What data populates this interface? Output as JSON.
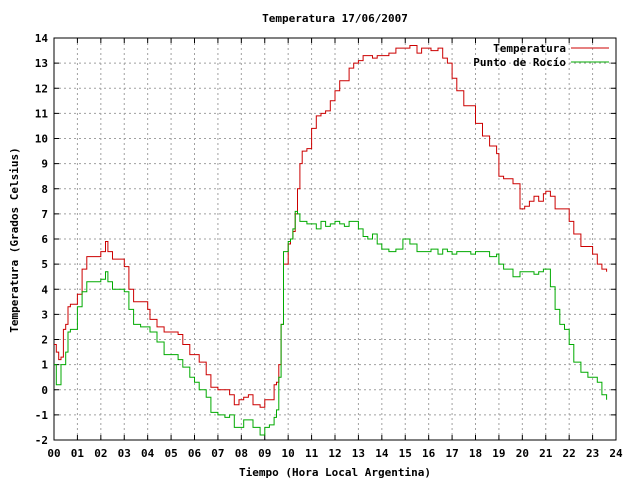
{
  "chart_data": {
    "type": "line",
    "title": "Temperatura 17/06/2007",
    "xlabel": "Tiempo (Hora Local Argentina)",
    "ylabel": "Temperatura (Grados Celsius)",
    "xlim": [
      0,
      24
    ],
    "ylim": [
      -2,
      14
    ],
    "x_ticks": [
      0,
      1,
      2,
      3,
      4,
      5,
      6,
      7,
      8,
      9,
      10,
      11,
      12,
      13,
      14,
      15,
      16,
      17,
      18,
      19,
      20,
      21,
      22,
      23,
      24
    ],
    "x_tick_labels": [
      "00",
      "01",
      "02",
      "03",
      "04",
      "05",
      "06",
      "07",
      "08",
      "09",
      "10",
      "11",
      "12",
      "13",
      "14",
      "15",
      "16",
      "17",
      "18",
      "19",
      "20",
      "21",
      "22",
      "23",
      "24"
    ],
    "y_ticks": [
      -2,
      -1,
      0,
      1,
      2,
      3,
      4,
      5,
      6,
      7,
      8,
      9,
      10,
      11,
      12,
      13,
      14
    ],
    "grid": true,
    "legend_position": "top-right",
    "series": [
      {
        "name": "Temperatura",
        "color": "#cc0000",
        "x": [
          0.0,
          0.1,
          0.2,
          0.3,
          0.4,
          0.5,
          0.6,
          0.7,
          0.9,
          1.0,
          1.2,
          1.4,
          1.5,
          1.8,
          2.0,
          2.2,
          2.3,
          2.5,
          2.7,
          3.0,
          3.2,
          3.4,
          3.7,
          4.0,
          4.1,
          4.4,
          4.7,
          5.0,
          5.3,
          5.5,
          5.8,
          6.0,
          6.2,
          6.5,
          6.7,
          7.0,
          7.3,
          7.5,
          7.7,
          7.9,
          8.1,
          8.3,
          8.5,
          8.8,
          9.0,
          9.2,
          9.4,
          9.5,
          9.6,
          9.7,
          9.8,
          10.0,
          10.1,
          10.2,
          10.3,
          10.4,
          10.5,
          10.6,
          10.8,
          11.0,
          11.2,
          11.4,
          11.6,
          11.8,
          12.0,
          12.2,
          12.4,
          12.6,
          12.8,
          13.0,
          13.2,
          13.4,
          13.6,
          13.8,
          14.0,
          14.3,
          14.6,
          14.9,
          15.2,
          15.5,
          15.7,
          15.9,
          16.1,
          16.4,
          16.6,
          16.8,
          17.0,
          17.2,
          17.5,
          17.8,
          18.0,
          18.3,
          18.6,
          18.9,
          19.0,
          19.2,
          19.4,
          19.6,
          19.9,
          20.1,
          20.3,
          20.5,
          20.7,
          20.9,
          21.0,
          21.2,
          21.4,
          21.6,
          21.8,
          22.0,
          22.2,
          22.5,
          22.8,
          23.0,
          23.2,
          23.4,
          23.6
        ],
        "values": [
          1.8,
          1.5,
          1.2,
          1.3,
          2.4,
          2.6,
          3.3,
          3.4,
          3.4,
          3.8,
          4.8,
          5.3,
          5.3,
          5.3,
          5.5,
          5.9,
          5.5,
          5.2,
          5.2,
          4.9,
          4.0,
          3.5,
          3.5,
          3.2,
          2.8,
          2.5,
          2.3,
          2.3,
          2.2,
          1.8,
          1.4,
          1.4,
          1.1,
          0.6,
          0.1,
          0.0,
          0.0,
          -0.2,
          -0.6,
          -0.4,
          -0.3,
          -0.2,
          -0.6,
          -0.7,
          -0.4,
          -0.4,
          0.2,
          0.3,
          1.0,
          2.6,
          5.0,
          5.8,
          6.0,
          6.3,
          7.0,
          8.0,
          9.0,
          9.5,
          9.6,
          10.4,
          10.9,
          11.0,
          11.1,
          11.5,
          11.9,
          12.3,
          12.3,
          12.8,
          13.0,
          13.1,
          13.3,
          13.3,
          13.2,
          13.3,
          13.3,
          13.4,
          13.6,
          13.6,
          13.7,
          13.4,
          13.6,
          13.6,
          13.5,
          13.6,
          13.2,
          13.0,
          12.4,
          11.9,
          11.3,
          11.3,
          10.6,
          10.1,
          9.7,
          9.4,
          8.5,
          8.4,
          8.4,
          8.2,
          7.2,
          7.3,
          7.5,
          7.7,
          7.5,
          7.8,
          7.9,
          7.7,
          7.2,
          7.2,
          7.2,
          6.7,
          6.2,
          5.7,
          5.7,
          5.4,
          5.0,
          4.8,
          4.7
        ]
      },
      {
        "name": "Punto de Rocío",
        "color": "#00aa00",
        "x": [
          0.0,
          0.1,
          0.2,
          0.3,
          0.4,
          0.5,
          0.6,
          0.7,
          0.9,
          1.0,
          1.2,
          1.4,
          1.5,
          1.8,
          2.0,
          2.2,
          2.3,
          2.5,
          2.7,
          3.0,
          3.2,
          3.4,
          3.7,
          4.0,
          4.1,
          4.4,
          4.7,
          5.0,
          5.3,
          5.5,
          5.8,
          6.0,
          6.2,
          6.5,
          6.7,
          7.0,
          7.3,
          7.5,
          7.7,
          7.9,
          8.1,
          8.3,
          8.5,
          8.8,
          9.0,
          9.2,
          9.4,
          9.5,
          9.6,
          9.7,
          9.8,
          10.0,
          10.1,
          10.2,
          10.3,
          10.4,
          10.5,
          10.6,
          10.8,
          11.0,
          11.2,
          11.4,
          11.6,
          11.8,
          12.0,
          12.2,
          12.4,
          12.6,
          12.8,
          13.0,
          13.2,
          13.4,
          13.6,
          13.8,
          14.0,
          14.3,
          14.6,
          14.9,
          15.2,
          15.5,
          15.7,
          15.9,
          16.1,
          16.4,
          16.6,
          16.8,
          17.0,
          17.2,
          17.5,
          17.8,
          18.0,
          18.3,
          18.6,
          18.9,
          19.0,
          19.2,
          19.4,
          19.6,
          19.9,
          20.1,
          20.3,
          20.5,
          20.7,
          20.9,
          21.0,
          21.2,
          21.4,
          21.6,
          21.8,
          22.0,
          22.2,
          22.5,
          22.8,
          23.0,
          23.2,
          23.4,
          23.6
        ],
        "values": [
          1.0,
          0.2,
          0.2,
          1.0,
          1.0,
          1.5,
          2.3,
          2.4,
          2.4,
          3.3,
          3.9,
          4.3,
          4.3,
          4.3,
          4.4,
          4.7,
          4.3,
          4.0,
          4.0,
          3.9,
          3.2,
          2.6,
          2.5,
          2.5,
          2.3,
          1.9,
          1.4,
          1.4,
          1.2,
          0.9,
          0.5,
          0.3,
          0.0,
          -0.3,
          -0.9,
          -1.0,
          -1.1,
          -1.0,
          -1.5,
          -1.5,
          -1.2,
          -1.2,
          -1.5,
          -1.8,
          -1.5,
          -1.4,
          -1.1,
          -0.8,
          0.5,
          2.6,
          5.5,
          5.9,
          6.0,
          6.4,
          7.1,
          7.0,
          6.7,
          6.7,
          6.6,
          6.6,
          6.4,
          6.7,
          6.5,
          6.6,
          6.7,
          6.6,
          6.5,
          6.7,
          6.7,
          6.4,
          6.1,
          6.0,
          6.2,
          5.8,
          5.6,
          5.5,
          5.6,
          6.0,
          5.8,
          5.5,
          5.5,
          5.5,
          5.6,
          5.4,
          5.6,
          5.5,
          5.4,
          5.5,
          5.5,
          5.4,
          5.5,
          5.5,
          5.3,
          5.4,
          5.0,
          4.8,
          4.8,
          4.5,
          4.7,
          4.7,
          4.7,
          4.6,
          4.7,
          4.8,
          4.8,
          4.1,
          3.2,
          2.6,
          2.4,
          1.8,
          1.1,
          0.7,
          0.5,
          0.5,
          0.3,
          -0.2,
          -0.4
        ]
      }
    ]
  }
}
